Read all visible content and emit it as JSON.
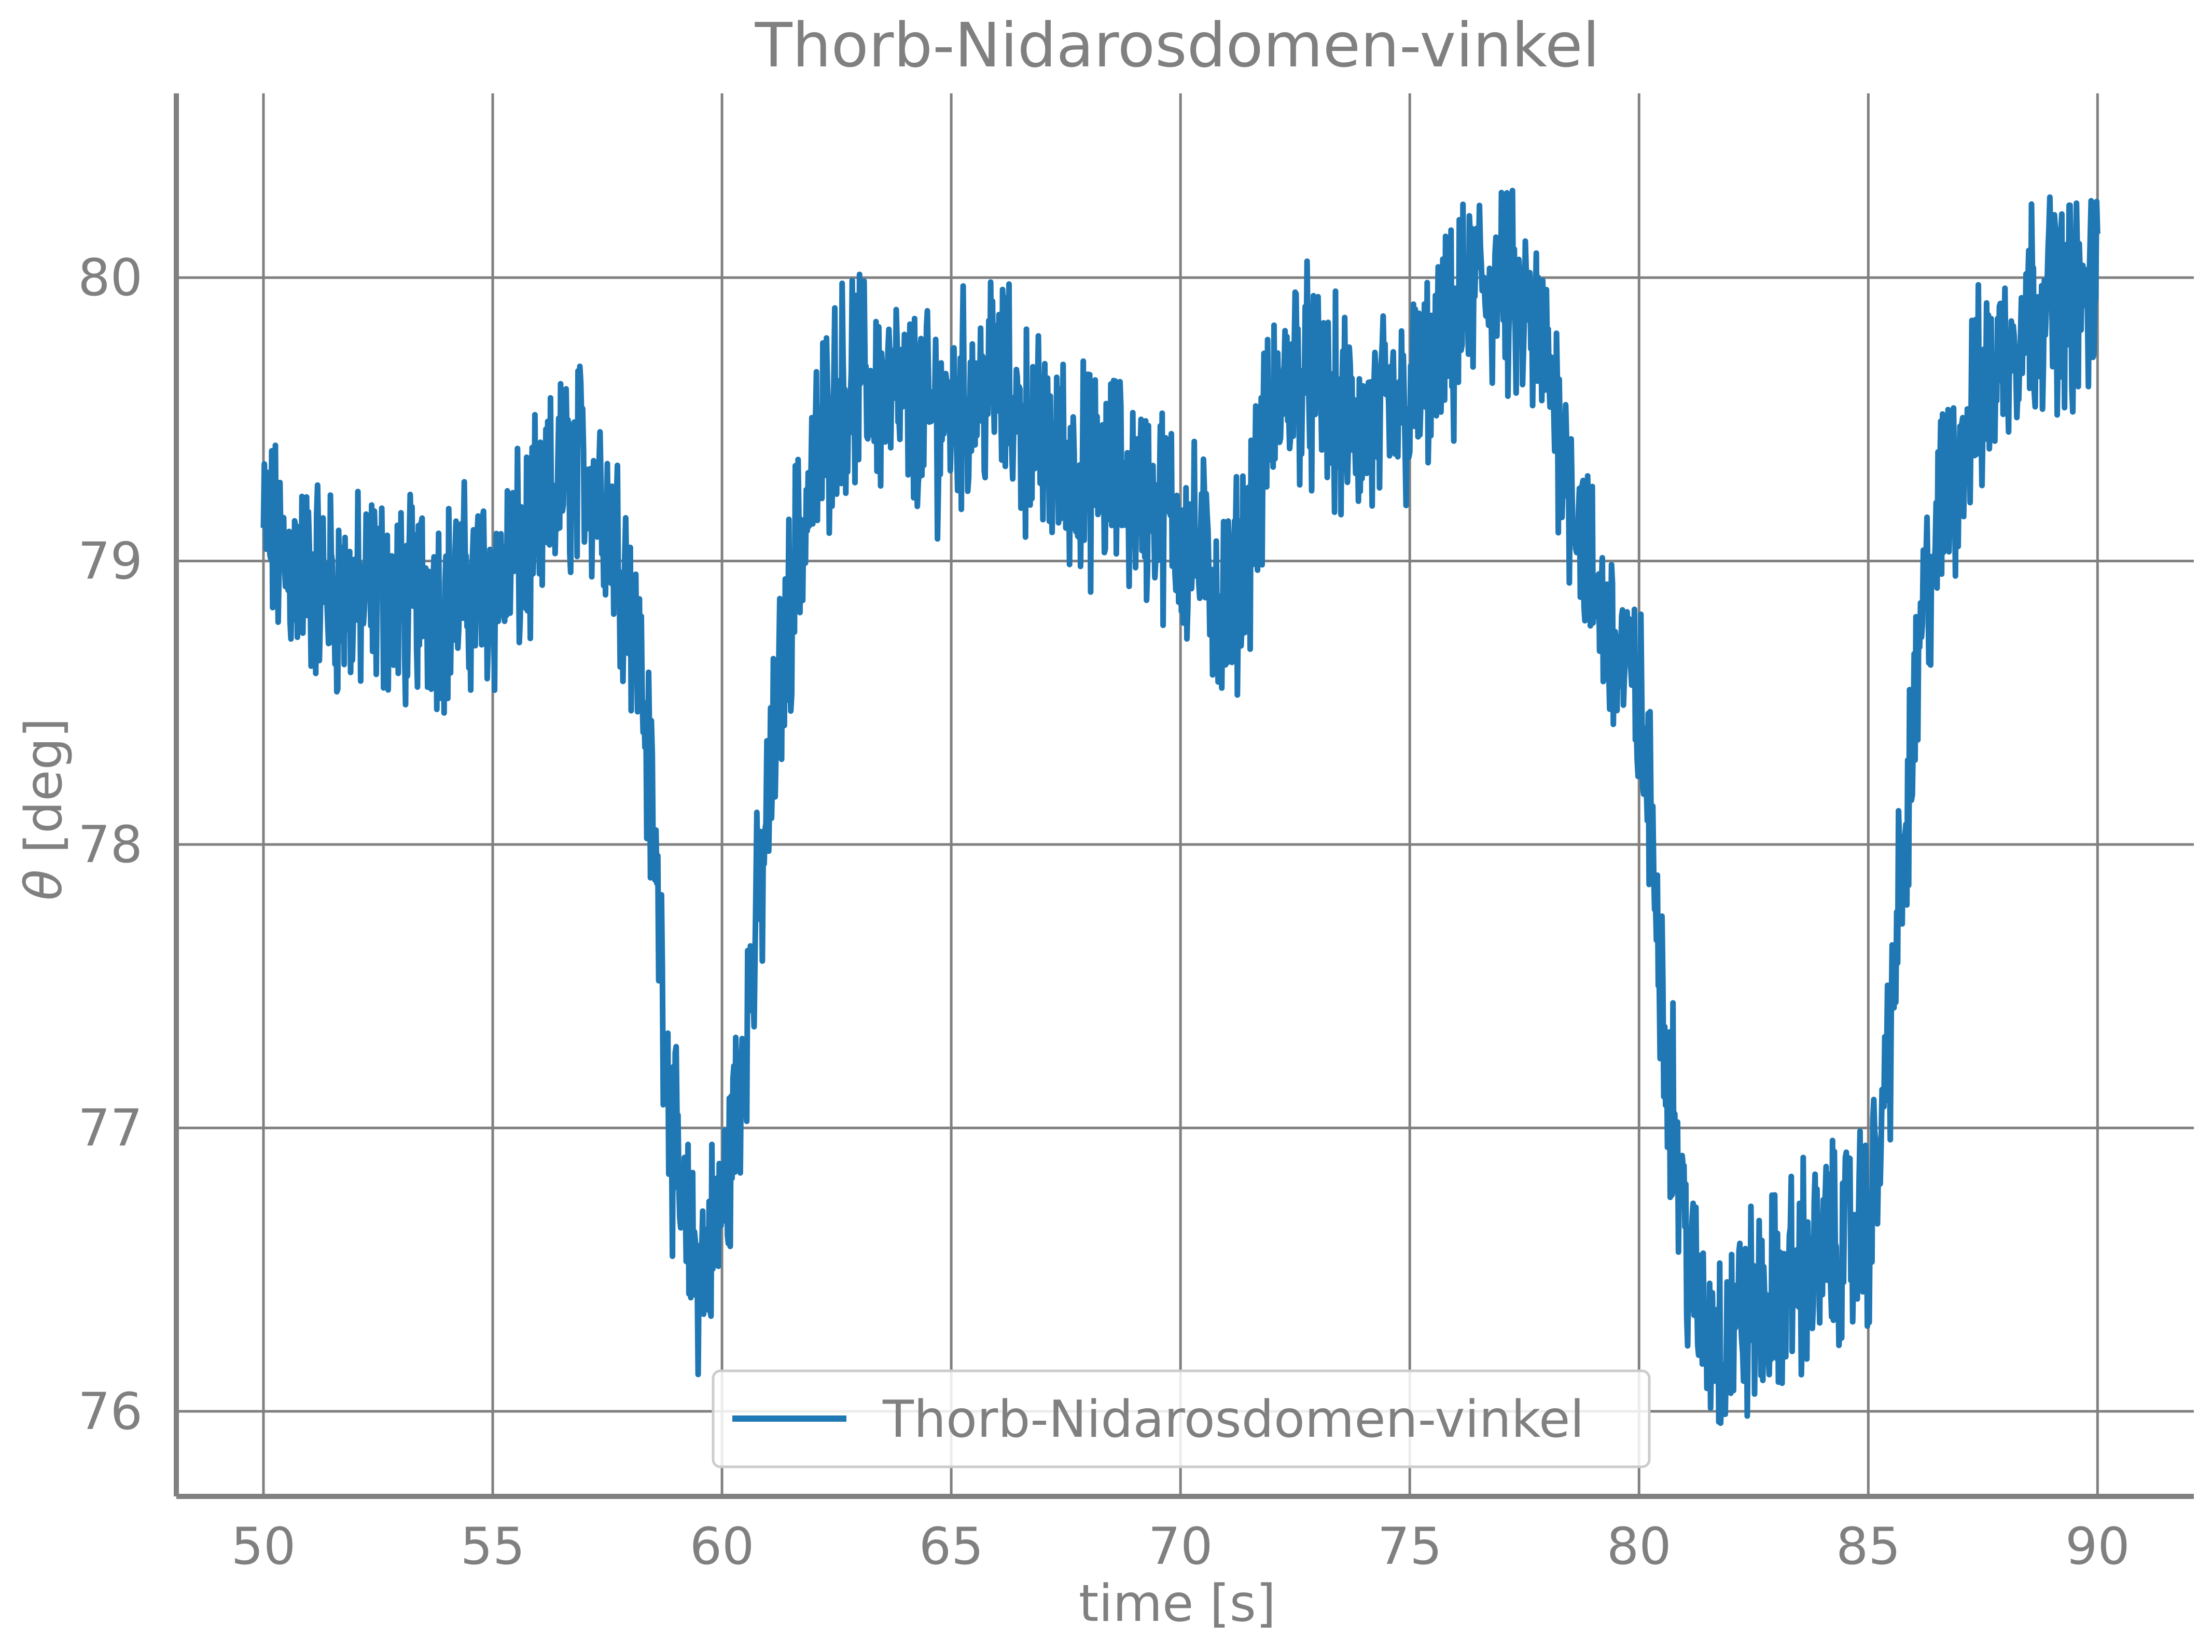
{
  "chart_data": {
    "type": "line",
    "title": "Thorb-Nidarosdomen-vinkel",
    "xlabel": "time [s]",
    "ylabel_symbol": "θ",
    "ylabel_unit": "[deg]",
    "xlim": [
      48.1,
      92.1
    ],
    "ylim": [
      75.7,
      80.65
    ],
    "xticks": [
      50,
      55,
      60,
      65,
      70,
      75,
      80,
      85,
      90
    ],
    "yticks": [
      76,
      77,
      78,
      79,
      80
    ],
    "xtick_labels": [
      "50",
      "55",
      "60",
      "65",
      "70",
      "75",
      "80",
      "85",
      "90"
    ],
    "ytick_labels": [
      "76",
      "77",
      "78",
      "79",
      "80"
    ],
    "grid": true,
    "legend_position": "bottom-center",
    "colors": {
      "series": "#1f77b4",
      "axis": "#808080",
      "text": "#808080",
      "legend_border": "#cccccc"
    },
    "series": [
      {
        "name": "Thorb-Nidarosdomen-vinkel",
        "x": [
          50.0,
          50.5,
          51.0,
          51.5,
          52.0,
          52.5,
          53.0,
          53.5,
          54.0,
          54.5,
          55.0,
          55.5,
          56.0,
          56.5,
          57.0,
          57.5,
          58.0,
          58.3,
          58.6,
          58.9,
          59.2,
          59.5,
          59.8,
          60.1,
          60.4,
          60.7,
          61.0,
          61.3,
          61.6,
          62.0,
          62.5,
          63.0,
          63.5,
          64.0,
          64.5,
          65.0,
          65.5,
          66.0,
          66.5,
          67.0,
          67.5,
          68.0,
          68.5,
          69.0,
          69.5,
          70.0,
          70.5,
          71.0,
          71.5,
          72.0,
          72.5,
          73.0,
          73.5,
          74.0,
          74.5,
          75.0,
          75.5,
          76.0,
          76.5,
          77.0,
          77.5,
          78.0,
          78.5,
          79.0,
          79.5,
          80.0,
          80.3,
          80.6,
          80.9,
          81.2,
          81.5,
          81.8,
          82.1,
          82.5,
          83.0,
          83.5,
          84.0,
          84.5,
          85.0,
          85.3,
          85.6,
          85.9,
          86.2,
          86.5,
          87.0,
          87.5,
          88.0,
          88.5,
          89.0,
          89.5,
          90.0
        ],
        "y": [
          79.1,
          79.0,
          78.95,
          78.9,
          78.85,
          78.9,
          78.85,
          78.9,
          78.85,
          78.9,
          78.9,
          79.0,
          79.1,
          79.3,
          79.35,
          79.2,
          78.9,
          78.5,
          77.8,
          77.0,
          76.6,
          76.5,
          76.6,
          76.8,
          77.2,
          77.6,
          78.1,
          78.6,
          79.0,
          79.3,
          79.6,
          79.65,
          79.6,
          79.55,
          79.5,
          79.55,
          79.6,
          79.65,
          79.5,
          79.4,
          79.35,
          79.3,
          79.3,
          79.25,
          79.2,
          79.1,
          79.0,
          78.8,
          79.1,
          79.5,
          79.7,
          79.6,
          79.5,
          79.45,
          79.5,
          79.55,
          79.65,
          79.8,
          80.0,
          79.95,
          79.85,
          79.7,
          79.3,
          78.9,
          78.7,
          78.5,
          78.0,
          77.3,
          76.8,
          76.4,
          76.3,
          76.25,
          76.3,
          76.35,
          76.4,
          76.5,
          76.55,
          76.6,
          76.65,
          77.0,
          77.6,
          78.2,
          78.8,
          79.1,
          79.4,
          79.6,
          79.75,
          79.9,
          79.95,
          79.9,
          79.95
        ]
      }
    ]
  }
}
